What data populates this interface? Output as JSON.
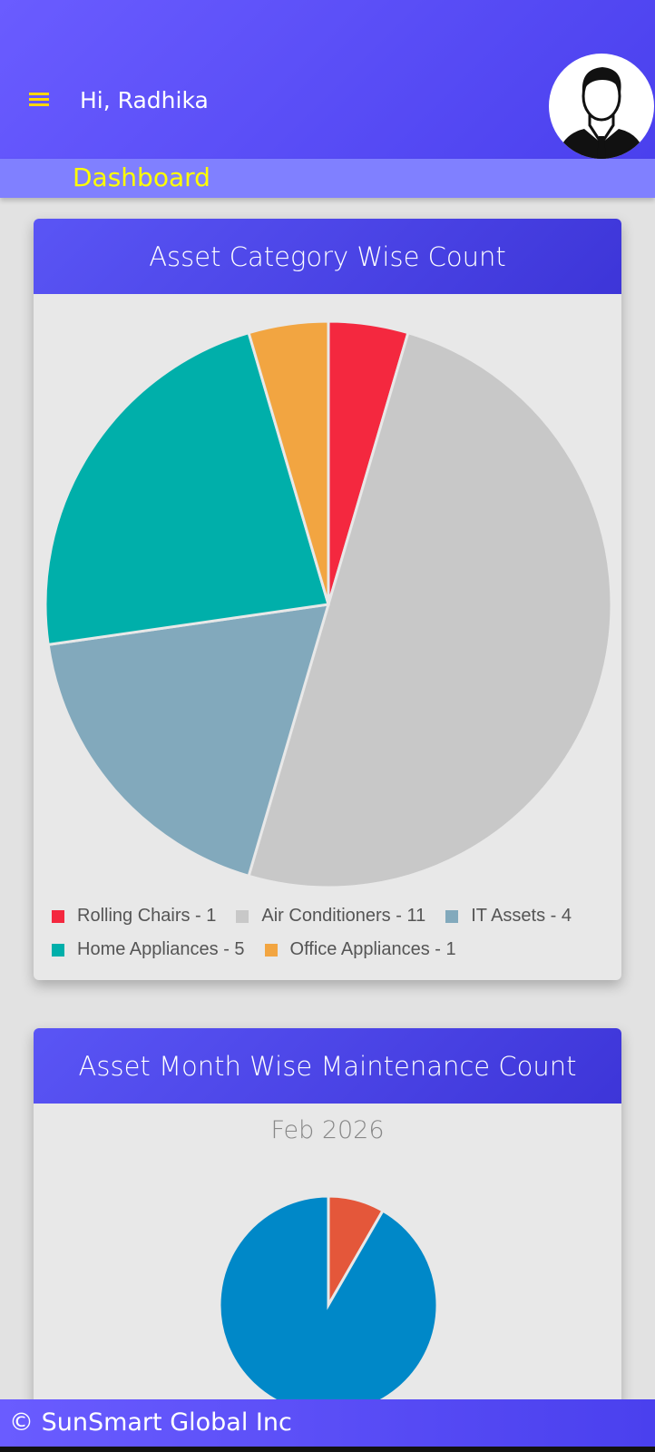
{
  "header": {
    "greeting": "Hi, Radhika"
  },
  "nav": {
    "title": "Dashboard"
  },
  "cards": [
    {
      "title": "Asset Category Wise Count",
      "chart": {
        "type": "pie",
        "values": [
          1,
          11,
          4,
          5,
          1
        ],
        "value_labels": [
          "Rolling Chairs - 1",
          "Air Conditioners - 11",
          "IT Assets - 4",
          "Home Appliances - 5",
          "Office Appliances - 1"
        ],
        "colors": [
          "#f4283f",
          "#c8c8c8",
          "#82a9bc",
          "#00afaa",
          "#f2a541"
        ]
      }
    },
    {
      "title": "Asset Month Wise Maintenance Count",
      "chart": {
        "type": "pie",
        "subtitle": "Feb 2026",
        "values": [
          1,
          11
        ],
        "colors": [
          "#e4573a",
          "#0088c8"
        ]
      }
    }
  ],
  "footer": {
    "text": "© SunSmart Global Inc"
  }
}
